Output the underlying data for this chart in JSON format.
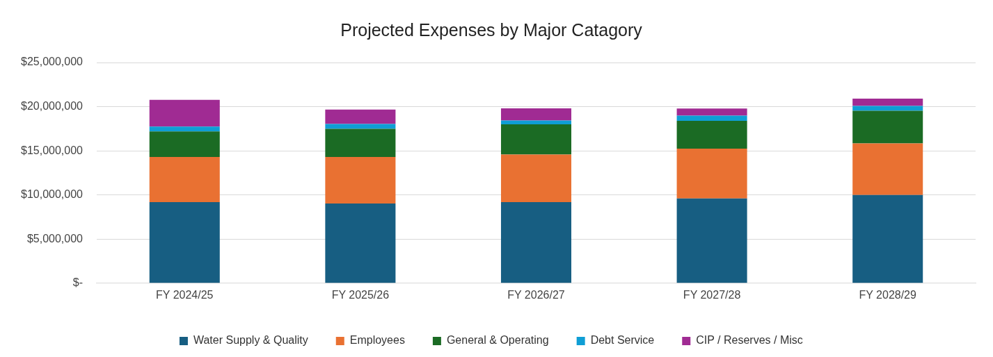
{
  "chart_data": {
    "type": "bar",
    "title": "Projected Expenses by Major Catagory",
    "categories": [
      "FY 2024/25",
      "FY 2025/26",
      "FY 2026/27",
      "FY 2027/28",
      "FY 2028/29"
    ],
    "stacked": true,
    "series": [
      {
        "name": "Water Supply & Quality",
        "color": "#175e82",
        "values": [
          9180000,
          9030000,
          9180000,
          9600000,
          10000000
        ]
      },
      {
        "name": "Employees",
        "color": "#e97132",
        "values": [
          5120000,
          5270000,
          5400000,
          5650000,
          5830000
        ]
      },
      {
        "name": "General & Operating",
        "color": "#1b6b24",
        "values": [
          2900000,
          3180000,
          3420000,
          3150000,
          3700000
        ]
      },
      {
        "name": "Debt Service",
        "color": "#0f9ed5",
        "values": [
          550000,
          550000,
          430000,
          580000,
          550000
        ]
      },
      {
        "name": "CIP / Reserves / Misc",
        "color": "#a02b93",
        "values": [
          3030000,
          1650000,
          1370000,
          800000,
          820000
        ]
      }
    ],
    "ylim": [
      0,
      25000000
    ],
    "yticks": [
      {
        "value": 0,
        "label": "$-"
      },
      {
        "value": 5000000,
        "label": "$5,000,000"
      },
      {
        "value": 10000000,
        "label": "$10,000,000"
      },
      {
        "value": 15000000,
        "label": "$15,000,000"
      },
      {
        "value": 20000000,
        "label": "$20,000,000"
      },
      {
        "value": 25000000,
        "label": "$25,000,000"
      }
    ],
    "grid": "y",
    "legend": "bottom"
  }
}
